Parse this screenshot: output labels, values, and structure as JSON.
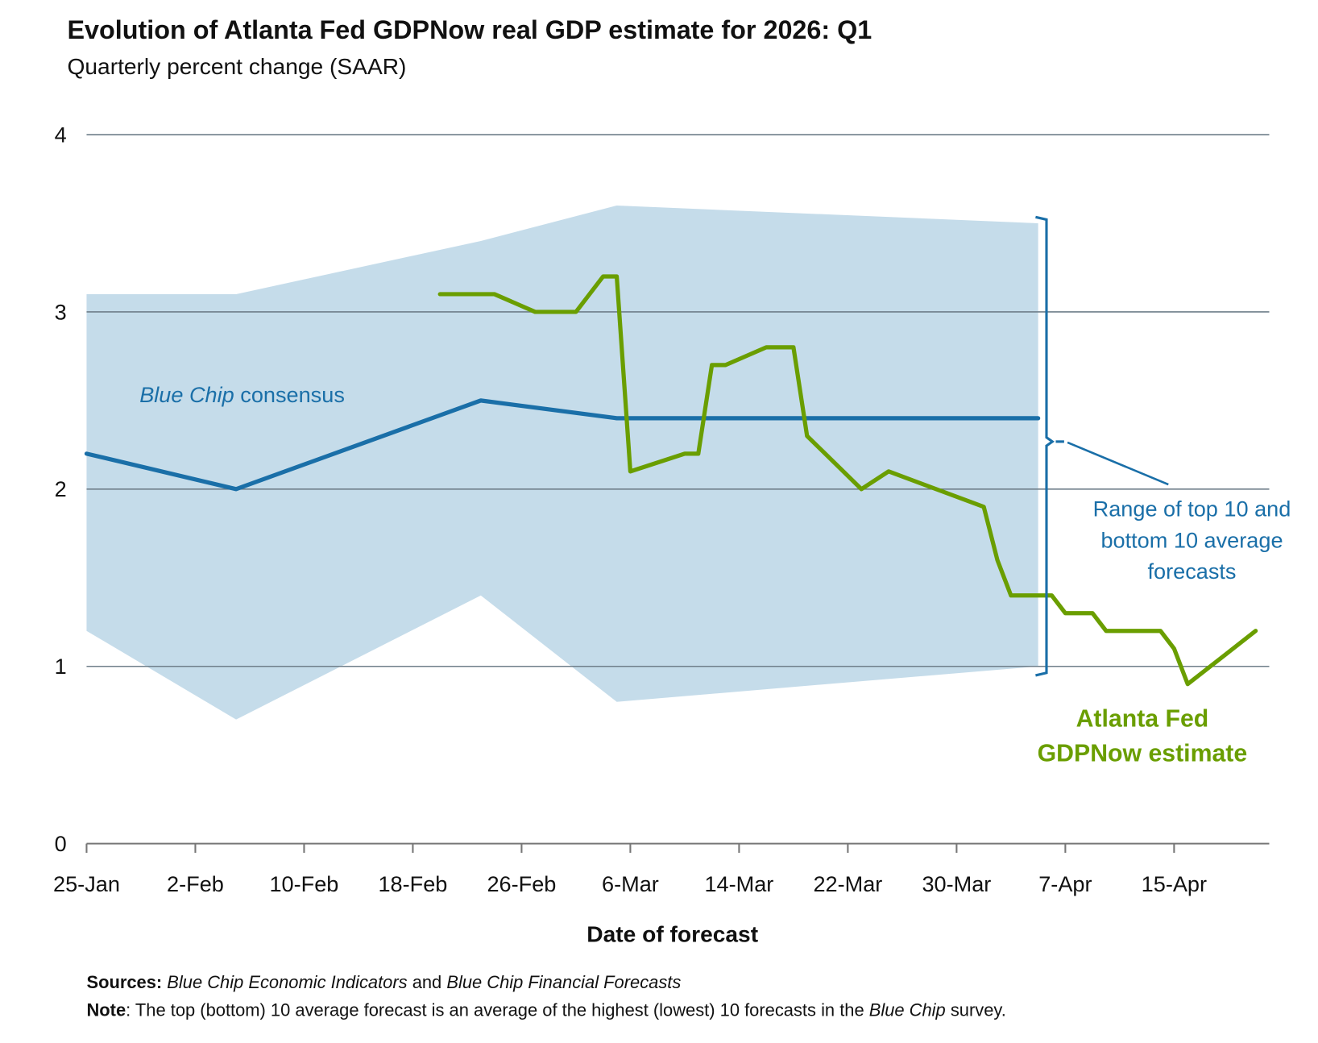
{
  "chart_data": {
    "type": "line",
    "title": "Evolution of Atlanta Fed GDPNow real GDP estimate for 2026: Q1",
    "subtitle": "Quarterly percent change (SAAR)",
    "xlabel": "Date of forecast",
    "ylabel": "",
    "ylim": [
      0,
      4
    ],
    "yticks": [
      "0",
      "1",
      "2",
      "3",
      "4"
    ],
    "x_unit": "days since 25-Jan",
    "xlim": [
      0,
      87
    ],
    "xticks": [
      {
        "day": 0,
        "label": "25-Jan"
      },
      {
        "day": 8,
        "label": "2-Feb"
      },
      {
        "day": 16,
        "label": "10-Feb"
      },
      {
        "day": 24,
        "label": "18-Feb"
      },
      {
        "day": 32,
        "label": "26-Feb"
      },
      {
        "day": 40,
        "label": "6-Mar"
      },
      {
        "day": 48,
        "label": "14-Mar"
      },
      {
        "day": 56,
        "label": "22-Mar"
      },
      {
        "day": 64,
        "label": "30-Mar"
      },
      {
        "day": 72,
        "label": "7-Apr"
      },
      {
        "day": 80,
        "label": "15-Apr"
      }
    ],
    "grid": true,
    "band": {
      "name": "Range of top 10 and bottom 10 average forecasts",
      "x": [
        0,
        11,
        29,
        39,
        70
      ],
      "upper": [
        3.1,
        3.1,
        3.4,
        3.6,
        3.5
      ],
      "lower": [
        1.2,
        0.7,
        1.4,
        0.8,
        1.0
      ],
      "color": "#c5dcea"
    },
    "series": [
      {
        "name": "Blue Chip consensus",
        "name_italic": "Blue Chip",
        "name_rest": " consensus",
        "color": "#1a6fa8",
        "x": [
          0,
          11,
          29,
          39,
          70
        ],
        "values": [
          2.2,
          2.0,
          2.5,
          2.4,
          2.4
        ]
      },
      {
        "name": "Atlanta Fed GDPNow estimate",
        "label_lines": [
          "Atlanta Fed",
          "GDPNow estimate"
        ],
        "color": "#6a9e00",
        "x": [
          26,
          30,
          33,
          36,
          38,
          39,
          40,
          44,
          45,
          46,
          47,
          50,
          52,
          53,
          57,
          59,
          66,
          67,
          68,
          71,
          72,
          74,
          75,
          79,
          80,
          81,
          86
        ],
        "values": [
          3.1,
          3.1,
          3.0,
          3.0,
          3.2,
          3.2,
          2.1,
          2.2,
          2.2,
          2.7,
          2.7,
          2.8,
          2.8,
          2.3,
          2.0,
          2.1,
          1.9,
          1.6,
          1.4,
          1.4,
          1.3,
          1.3,
          1.2,
          1.2,
          1.1,
          0.9,
          1.2
        ]
      }
    ],
    "annotations": {
      "range_lines": [
        "Range of top 10 and",
        "bottom 10 average",
        "forecasts"
      ]
    },
    "footer": {
      "sources_label": "Sources:",
      "sources_a": "Blue Chip Economic Indicators",
      "sources_and": " and ",
      "sources_b": "Blue Chip Financial Forecasts",
      "note_label": "Note",
      "note_text": ": The top (bottom) 10 average forecast is an average of the highest (lowest) 10 forecasts in the ",
      "note_italic": "Blue Chip",
      "note_end": " survey."
    }
  }
}
